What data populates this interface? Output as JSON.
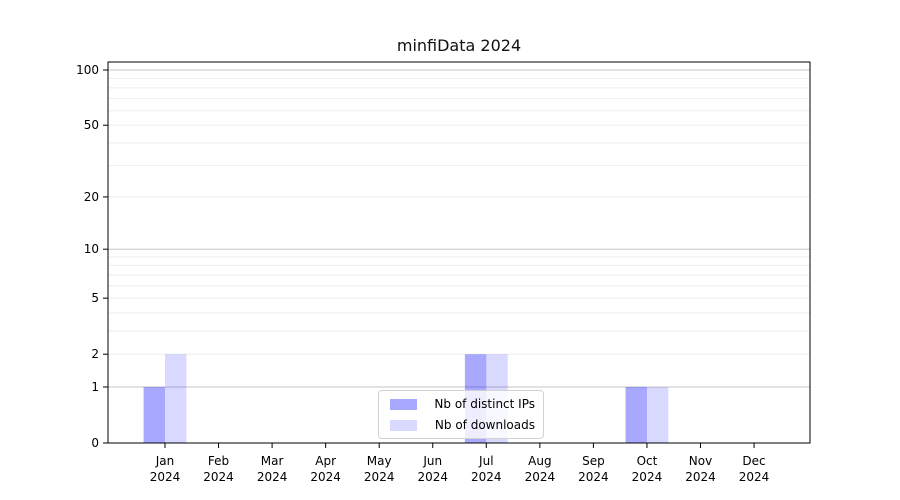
{
  "title": "minfiData 2024",
  "colors": {
    "bar_base": "#0000ff",
    "grid_major": "#c6c6c6",
    "grid_minor": "#eeeeee",
    "axis": "#000000",
    "legend_border": "#d2d2d2"
  },
  "chart_data": {
    "type": "bar",
    "title": "minfiData 2024",
    "categories": [
      "Jan",
      "Feb",
      "Mar",
      "Apr",
      "May",
      "Jun",
      "Jul",
      "Aug",
      "Sep",
      "Oct",
      "Nov",
      "Dec"
    ],
    "category_year": "2024",
    "series": [
      {
        "name": "Nb of distinct IPs",
        "color": "#0000ff",
        "alpha": 0.34,
        "values": [
          1,
          0,
          0,
          0,
          0,
          0,
          2,
          0,
          0,
          1,
          0,
          0
        ]
      },
      {
        "name": "Nb of downloads",
        "color": "#0000ff",
        "alpha": 0.15,
        "values": [
          2,
          0,
          0,
          0,
          0,
          0,
          2,
          0,
          0,
          1,
          0,
          0
        ]
      }
    ],
    "yscale": "log1p",
    "yticks": [
      0,
      1,
      2,
      5,
      10,
      20,
      50,
      100
    ],
    "minor_gridlines": [
      2,
      3,
      4,
      5,
      6,
      7,
      8,
      9,
      20,
      30,
      40,
      50,
      60,
      70,
      80,
      90
    ],
    "major_gridlines": [
      1,
      10,
      100
    ],
    "ylim": [
      0,
      110.5
    ],
    "xlabel": "",
    "ylabel": "",
    "grid": true,
    "legend_position": "lower center"
  }
}
